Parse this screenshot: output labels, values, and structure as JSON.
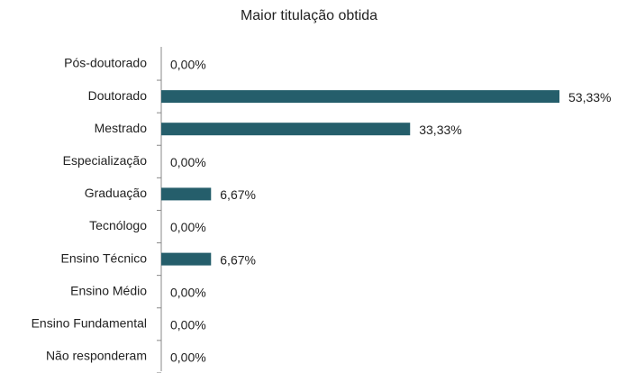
{
  "chart_data": {
    "type": "bar",
    "orientation": "horizontal",
    "title": "Maior titulação obtida",
    "categories": [
      "Pós-doutorado",
      "Doutorado",
      "Mestrado",
      "Especialização",
      "Graduação",
      "Tecnólogo",
      "Ensino Técnico",
      "Ensino Médio",
      "Ensino Fundamental",
      "Não responderam"
    ],
    "values": [
      0,
      53.33,
      33.33,
      0,
      6.67,
      0,
      6.67,
      0,
      0,
      0
    ],
    "value_labels": [
      "0,00%",
      "53,33%",
      "33,33%",
      "0,00%",
      "6,67%",
      "0,00%",
      "6,67%",
      "0,00%",
      "0,00%",
      "0,00%"
    ],
    "color": "#255e6b"
  }
}
